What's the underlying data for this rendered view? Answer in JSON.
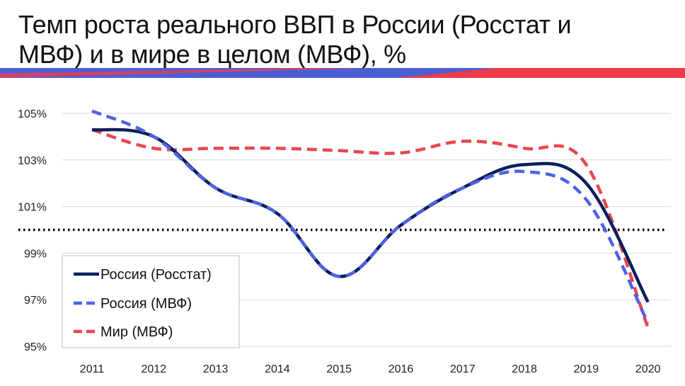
{
  "title": "Темп роста реального ВВП в России (Росстат и МВФ) и в мире в целом (МВФ), %",
  "title_lines": [
    "Темп роста реального ВВП в России (Росстат и",
    "МВФ) и в мире в целом (МВФ), %"
  ],
  "colors": {
    "stripe_blue": "#4a5fd6",
    "stripe_red": "#ef3b4c",
    "russia_rosstat": "#0b1f5c",
    "russia_imf": "#4e63e0",
    "world_imf": "#e8474f",
    "baseline": "#000000",
    "grid": "#d9d9d9"
  },
  "chart_data": {
    "type": "line",
    "title": "Темп роста реального ВВП в России (Росстат и МВФ) и в мире в целом (МВФ), %",
    "xlabel": "",
    "ylabel": "",
    "categories": [
      "2011",
      "2012",
      "2013",
      "2014",
      "2015",
      "2016",
      "2017",
      "2018",
      "2019",
      "2020"
    ],
    "ylim": [
      95,
      106
    ],
    "yticks": [
      95,
      97,
      99,
      101,
      103,
      105
    ],
    "ytick_labels": [
      "95%",
      "97%",
      "99%",
      "101%",
      "103%",
      "105%"
    ],
    "grid": true,
    "reference_line": 100,
    "legend_position": "bottom-left",
    "series": [
      {
        "name": "Россия (Росстат)",
        "style": "solid",
        "values": [
          104.3,
          104.0,
          101.8,
          100.7,
          98.0,
          100.2,
          101.8,
          102.8,
          102.0,
          96.9
        ]
      },
      {
        "name": "Россия (МВФ)",
        "style": "dashed",
        "values": [
          105.1,
          104.0,
          101.8,
          100.7,
          98.0,
          100.2,
          101.8,
          102.5,
          101.3,
          96.0
        ]
      },
      {
        "name": "Мир (МВФ)",
        "style": "dashed",
        "values": [
          104.3,
          103.5,
          103.5,
          103.5,
          103.4,
          103.3,
          103.8,
          103.5,
          102.8,
          95.8
        ]
      }
    ]
  }
}
